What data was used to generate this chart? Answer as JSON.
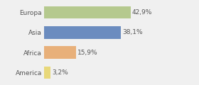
{
  "categories": [
    "Europa",
    "Asia",
    "Africa",
    "America"
  ],
  "values": [
    42.9,
    38.1,
    15.9,
    3.2
  ],
  "labels": [
    "42,9%",
    "38,1%",
    "15,9%",
    "3,2%"
  ],
  "bar_colors": [
    "#b5c98e",
    "#6b8cbf",
    "#e8b07a",
    "#e8d87a"
  ],
  "background_color": "#f0f0f0",
  "xlim": [
    0,
    65
  ],
  "label_fontsize": 6.5,
  "tick_fontsize": 6.5
}
